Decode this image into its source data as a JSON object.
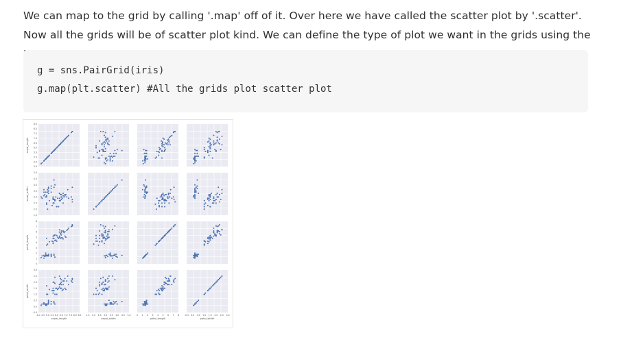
{
  "article": {
    "paragraph": "We can map to the grid by calling '.map' off of it. Over here we have called the scatter plot by '.scatter'. Now all the grids will be of scatter plot kind. We can define the type of plot we want in the grids using the '.map'.",
    "code_lines": [
      "g = sns.PairGrid(iris)",
      "g.map(plt.scatter) #All the grids plot scatter plot"
    ]
  },
  "chart_data": {
    "type": "scatter",
    "layout": "pair-grid 4x4",
    "variables": [
      "sepal_length",
      "sepal_width",
      "petal_length",
      "petal_width"
    ],
    "ranges": {
      "sepal_length": [
        4.0,
        8.5
      ],
      "sepal_width": [
        1.5,
        5.0
      ],
      "petal_length": [
        0,
        7.5
      ],
      "petal_width": [
        -0.5,
        3.0
      ]
    },
    "y_ticks": {
      "sepal_length": [
        "8.5",
        "8.0",
        "7.5",
        "7.0",
        "6.5",
        "6.0",
        "5.5",
        "5.0",
        "4.5",
        "4.0"
      ],
      "sepal_width": [
        "5.0",
        "4.5",
        "4.0",
        "3.5",
        "3.0",
        "2.5",
        "2.0",
        "1.5"
      ],
      "petal_length": [
        "8",
        "7",
        "6",
        "5",
        "4",
        "3",
        "2",
        "1",
        "0"
      ],
      "petal_width": [
        "3.0",
        "2.5",
        "2.0",
        "1.5",
        "1.0",
        "0.5",
        "0.0",
        "-0.5"
      ]
    },
    "x_ticks": {
      "sepal_length": [
        "4.0",
        "4.5",
        "5.0",
        "5.5",
        "6.0",
        "6.5",
        "7.0",
        "7.5",
        "8.0",
        "8.5"
      ],
      "sepal_width": [
        "1.5",
        "2.0",
        "2.5",
        "3.0",
        "3.5",
        "4.0",
        "4.5",
        "5.0"
      ],
      "petal_length": [
        "0",
        "1",
        "2",
        "3",
        "4",
        "5",
        "6",
        "7",
        "8"
      ],
      "petal_width": [
        "-0.5",
        "0.0",
        "0.5",
        "1.0",
        "1.5",
        "2.0",
        "2.5",
        "3.0"
      ]
    },
    "samples": [
      [
        5.1,
        3.5,
        1.4,
        0.2
      ],
      [
        4.9,
        3.0,
        1.4,
        0.2
      ],
      [
        4.7,
        3.2,
        1.3,
        0.2
      ],
      [
        4.6,
        3.1,
        1.5,
        0.2
      ],
      [
        5.0,
        3.6,
        1.4,
        0.2
      ],
      [
        5.4,
        3.9,
        1.7,
        0.4
      ],
      [
        4.6,
        3.4,
        1.4,
        0.3
      ],
      [
        5.0,
        3.4,
        1.5,
        0.2
      ],
      [
        4.4,
        2.9,
        1.4,
        0.2
      ],
      [
        4.9,
        3.1,
        1.5,
        0.1
      ],
      [
        5.4,
        3.7,
        1.5,
        0.2
      ],
      [
        4.8,
        3.4,
        1.6,
        0.2
      ],
      [
        4.8,
        3.0,
        1.4,
        0.1
      ],
      [
        4.3,
        3.0,
        1.1,
        0.1
      ],
      [
        5.8,
        4.0,
        1.2,
        0.2
      ],
      [
        5.7,
        4.4,
        1.5,
        0.4
      ],
      [
        5.4,
        3.9,
        1.3,
        0.4
      ],
      [
        5.1,
        3.5,
        1.4,
        0.3
      ],
      [
        5.7,
        3.8,
        1.7,
        0.3
      ],
      [
        5.1,
        3.8,
        1.5,
        0.3
      ],
      [
        5.4,
        3.4,
        1.7,
        0.2
      ],
      [
        5.1,
        3.7,
        1.5,
        0.4
      ],
      [
        4.6,
        3.6,
        1.0,
        0.2
      ],
      [
        5.1,
        3.3,
        1.7,
        0.5
      ],
      [
        4.8,
        3.4,
        1.9,
        0.2
      ],
      [
        7.0,
        3.2,
        4.7,
        1.4
      ],
      [
        6.4,
        3.2,
        4.5,
        1.5
      ],
      [
        6.9,
        3.1,
        4.9,
        1.5
      ],
      [
        5.5,
        2.3,
        4.0,
        1.3
      ],
      [
        6.5,
        2.8,
        4.6,
        1.5
      ],
      [
        5.7,
        2.8,
        4.5,
        1.3
      ],
      [
        6.3,
        3.3,
        4.7,
        1.6
      ],
      [
        4.9,
        2.4,
        3.3,
        1.0
      ],
      [
        6.6,
        2.9,
        4.6,
        1.3
      ],
      [
        5.2,
        2.7,
        3.9,
        1.4
      ],
      [
        5.0,
        2.0,
        3.5,
        1.0
      ],
      [
        5.9,
        3.0,
        4.2,
        1.5
      ],
      [
        6.0,
        2.2,
        4.0,
        1.0
      ],
      [
        6.1,
        2.9,
        4.7,
        1.4
      ],
      [
        5.6,
        2.9,
        3.6,
        1.3
      ],
      [
        6.7,
        3.1,
        4.4,
        1.4
      ],
      [
        5.6,
        3.0,
        4.5,
        1.5
      ],
      [
        5.8,
        2.7,
        4.1,
        1.0
      ],
      [
        6.2,
        2.2,
        4.5,
        1.5
      ],
      [
        5.6,
        2.5,
        3.9,
        1.1
      ],
      [
        6.3,
        3.3,
        6.0,
        2.5
      ],
      [
        5.8,
        2.7,
        5.1,
        1.9
      ],
      [
        7.1,
        3.0,
        5.9,
        2.1
      ],
      [
        6.3,
        2.9,
        5.6,
        1.8
      ],
      [
        6.5,
        3.0,
        5.8,
        2.2
      ],
      [
        7.6,
        3.0,
        6.6,
        2.1
      ],
      [
        4.9,
        2.5,
        4.5,
        1.7
      ],
      [
        7.3,
        2.9,
        6.3,
        1.8
      ],
      [
        6.7,
        2.5,
        5.8,
        1.8
      ],
      [
        7.2,
        3.6,
        6.1,
        2.5
      ],
      [
        6.5,
        3.2,
        5.1,
        2.0
      ],
      [
        6.4,
        2.7,
        5.3,
        1.9
      ],
      [
        6.8,
        3.0,
        5.5,
        2.1
      ],
      [
        5.7,
        2.5,
        5.0,
        2.0
      ],
      [
        5.8,
        2.8,
        5.1,
        2.4
      ],
      [
        6.4,
        3.2,
        5.3,
        2.3
      ],
      [
        6.5,
        3.0,
        5.5,
        1.8
      ],
      [
        7.7,
        3.8,
        6.7,
        2.2
      ],
      [
        7.7,
        2.6,
        6.9,
        2.3
      ],
      [
        6.0,
        2.2,
        5.0,
        1.5
      ],
      [
        6.9,
        3.2,
        5.7,
        2.3
      ],
      [
        5.6,
        2.8,
        4.9,
        2.0
      ],
      [
        7.7,
        2.8,
        6.7,
        2.0
      ],
      [
        6.3,
        2.7,
        4.9,
        1.8
      ],
      [
        6.7,
        3.3,
        5.7,
        2.1
      ]
    ],
    "colors": {
      "panel": "#eaeaf2",
      "grid": "#ffffff",
      "point": "#4c72b0",
      "tick": "#555555"
    }
  }
}
